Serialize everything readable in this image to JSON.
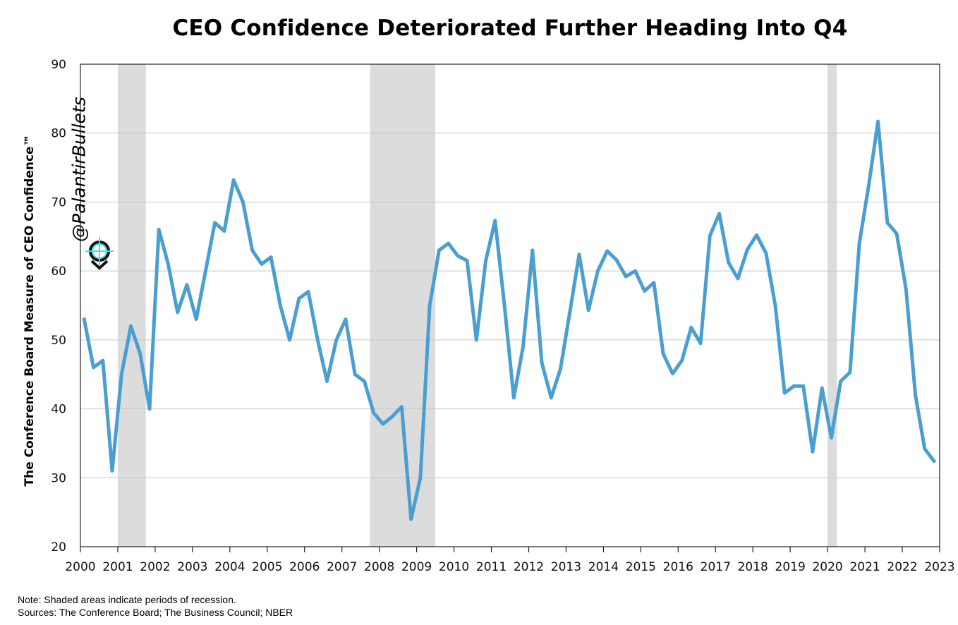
{
  "chart_data": {
    "type": "line",
    "title": "CEO Confidence Deteriorated Further Heading Into Q4",
    "ylabel": "The Conference Board Measure of CEO Confidence™",
    "xlabel": "",
    "xlim": [
      2000,
      2023
    ],
    "ylim": [
      20,
      90
    ],
    "yticks": [
      20,
      30,
      40,
      50,
      60,
      70,
      80,
      90
    ],
    "xticks": [
      2000,
      2001,
      2002,
      2003,
      2004,
      2005,
      2006,
      2007,
      2008,
      2009,
      2010,
      2011,
      2012,
      2013,
      2014,
      2015,
      2016,
      2017,
      2018,
      2019,
      2020,
      2021,
      2022,
      2023
    ],
    "grid": "horizontal",
    "series": [
      {
        "color": "#4a9fd0",
        "x": [
          2000.1,
          2000.35,
          2000.6,
          2000.85,
          2001.1,
          2001.35,
          2001.6,
          2001.85,
          2002.1,
          2002.35,
          2002.6,
          2002.85,
          2003.1,
          2003.35,
          2003.6,
          2003.85,
          2004.1,
          2004.35,
          2004.6,
          2004.85,
          2005.1,
          2005.35,
          2005.6,
          2005.85,
          2006.1,
          2006.35,
          2006.6,
          2006.85,
          2007.1,
          2007.35,
          2007.6,
          2007.85,
          2008.1,
          2008.35,
          2008.6,
          2008.85,
          2009.1,
          2009.35,
          2009.6,
          2009.85,
          2010.1,
          2010.35,
          2010.6,
          2010.85,
          2011.1,
          2011.35,
          2011.6,
          2011.85,
          2012.1,
          2012.35,
          2012.6,
          2012.85,
          2013.1,
          2013.35,
          2013.6,
          2013.85,
          2014.1,
          2014.35,
          2014.6,
          2014.85,
          2015.1,
          2015.35,
          2015.6,
          2015.85,
          2016.1,
          2016.35,
          2016.6,
          2016.85,
          2017.1,
          2017.35,
          2017.6,
          2017.85,
          2018.1,
          2018.35,
          2018.6,
          2018.85,
          2019.1,
          2019.35,
          2019.6,
          2019.85,
          2020.1,
          2020.35,
          2020.6,
          2020.85,
          2021.1,
          2021.35,
          2021.6,
          2021.85,
          2022.1,
          2022.35,
          2022.6,
          2022.85
        ],
        "values": [
          53,
          46,
          47,
          31,
          45,
          52,
          48,
          40,
          66,
          61,
          54,
          58,
          53,
          60,
          67,
          65.8,
          73.2,
          70,
          63,
          61,
          62,
          55,
          50,
          56,
          57,
          50,
          44,
          50,
          53,
          45,
          44,
          39.4,
          37.8,
          38.9,
          40.3,
          24,
          30,
          55,
          63,
          64,
          62.2,
          61.5,
          50,
          61.5,
          67.3,
          55,
          41.6,
          49,
          63,
          46.7,
          41.6,
          45.8,
          54,
          62.4,
          54.3,
          60,
          62.9,
          61.6,
          59.2,
          60,
          57.1,
          58.3,
          48,
          45.1,
          47,
          51.8,
          49.5,
          65.1,
          68.3,
          61.2,
          58.9,
          63.1,
          65.2,
          62.6,
          55,
          42.3,
          43.3,
          43.3,
          33.8,
          43,
          35.8,
          44,
          45.3,
          64,
          72.4,
          81.7,
          67,
          65.4,
          57.4,
          42,
          34.2,
          32.4
        ]
      }
    ],
    "recessions": [
      [
        2001.0,
        2001.75
      ],
      [
        2007.75,
        2009.5
      ],
      [
        2020.0,
        2020.25
      ]
    ],
    "recession_color": "#dcdcdc",
    "notes": {
      "note": "Note: Shaded areas indicate periods of  recession.",
      "sources": "Sources: The  Conference Board; The Business Council; NBER"
    },
    "watermark": "@PalantirBullets"
  }
}
